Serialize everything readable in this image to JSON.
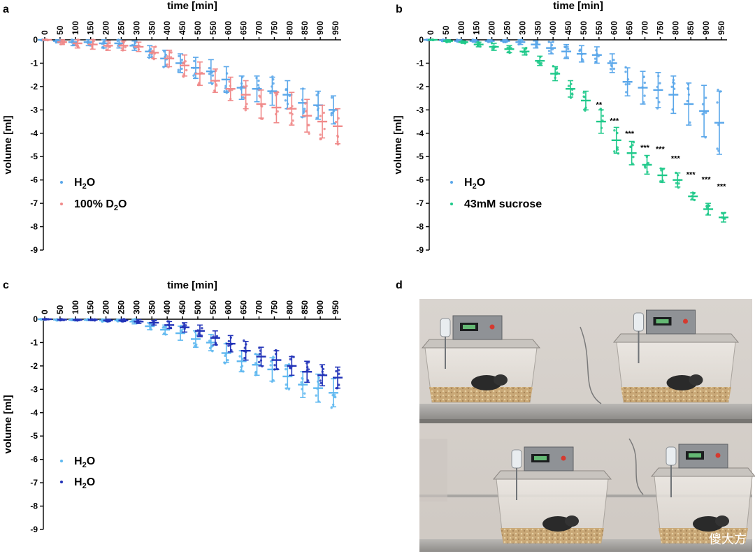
{
  "colors": {
    "h2o": "#5aa7ea",
    "d2o": "#f08a8a",
    "sucrose": "#1fc98a",
    "h2o_dark": "#2233b8",
    "h2o_light": "#5fb8f0"
  },
  "watermark": "傻大方",
  "chart_data": [
    {
      "panel": "a",
      "type": "scatter",
      "xlabel": "time [min]",
      "ylabel": "volume [ml]",
      "x": [
        0,
        50,
        100,
        150,
        200,
        250,
        300,
        350,
        400,
        450,
        500,
        550,
        600,
        650,
        700,
        750,
        800,
        850,
        900,
        950
      ],
      "ylim": [
        -9,
        0
      ],
      "yticks": [
        0,
        -1,
        -2,
        -3,
        -4,
        -5,
        -6,
        -7,
        -8,
        -9
      ],
      "series": [
        {
          "name": "H₂O",
          "name_parts": [
            "H",
            "2",
            "O"
          ],
          "color": "#5aa7ea",
          "mean": [
            0,
            -0.05,
            -0.1,
            -0.1,
            -0.15,
            -0.15,
            -0.25,
            -0.5,
            -0.8,
            -1.0,
            -1.2,
            -1.35,
            -1.7,
            -2.05,
            -2.1,
            -2.2,
            -2.35,
            -2.7,
            -2.8,
            -3.0
          ],
          "sd": [
            0.02,
            0.08,
            0.15,
            0.15,
            0.2,
            0.2,
            0.2,
            0.25,
            0.35,
            0.4,
            0.45,
            0.5,
            0.55,
            0.5,
            0.55,
            0.6,
            0.6,
            0.6,
            0.6,
            0.6
          ]
        },
        {
          "name": "100% D₂O",
          "name_parts": [
            "100% D",
            "2",
            "O"
          ],
          "color": "#f08a8a",
          "mean": [
            0,
            -0.1,
            -0.15,
            -0.2,
            -0.25,
            -0.25,
            -0.3,
            -0.55,
            -0.8,
            -1.1,
            -1.45,
            -1.75,
            -2.1,
            -2.35,
            -2.75,
            -2.9,
            -2.95,
            -3.25,
            -3.5,
            -3.7
          ],
          "sd": [
            0.02,
            0.1,
            0.2,
            0.2,
            0.2,
            0.2,
            0.2,
            0.25,
            0.35,
            0.45,
            0.5,
            0.5,
            0.5,
            0.6,
            0.6,
            0.65,
            0.7,
            0.7,
            0.7,
            0.75
          ]
        }
      ]
    },
    {
      "panel": "b",
      "type": "scatter",
      "xlabel": "time [min]",
      "ylabel": "volume [ml]",
      "x": [
        0,
        50,
        100,
        150,
        200,
        250,
        300,
        350,
        400,
        450,
        500,
        550,
        600,
        650,
        700,
        750,
        800,
        850,
        900,
        950
      ],
      "ylim": [
        -9,
        0
      ],
      "yticks": [
        0,
        -1,
        -2,
        -3,
        -4,
        -5,
        -6,
        -7,
        -8,
        -9
      ],
      "series": [
        {
          "name": "H₂O",
          "name_parts": [
            "H",
            "2",
            "O"
          ],
          "color": "#5aa7ea",
          "mean": [
            0,
            -0.02,
            -0.05,
            -0.05,
            -0.05,
            -0.05,
            -0.1,
            -0.2,
            -0.35,
            -0.5,
            -0.6,
            -0.65,
            -1.0,
            -1.8,
            -2.05,
            -2.15,
            -2.35,
            -2.75,
            -3.05,
            -3.55
          ],
          "sd": [
            0.02,
            0.05,
            0.05,
            0.05,
            0.05,
            0.05,
            0.1,
            0.15,
            0.25,
            0.3,
            0.35,
            0.35,
            0.4,
            0.6,
            0.7,
            0.75,
            0.8,
            0.9,
            1.1,
            1.35
          ]
        },
        {
          "name": "43mM sucrose",
          "name_parts": [
            "43mM sucrose"
          ],
          "color": "#1fc98a",
          "mean": [
            0,
            -0.05,
            -0.1,
            -0.2,
            -0.3,
            -0.4,
            -0.5,
            -0.9,
            -1.45,
            -2.1,
            -2.6,
            -3.5,
            -4.3,
            -4.85,
            -5.35,
            -5.8,
            -6.0,
            -6.7,
            -7.25,
            -7.6
          ],
          "sd": [
            0.02,
            0.05,
            0.05,
            0.1,
            0.15,
            0.15,
            0.15,
            0.2,
            0.3,
            0.35,
            0.4,
            0.5,
            0.55,
            0.5,
            0.4,
            0.3,
            0.3,
            0.15,
            0.25,
            0.2
          ]
        }
      ],
      "annotations": [
        {
          "x": 550,
          "y": -3.0,
          "text": "**"
        },
        {
          "x": 600,
          "y": -3.7,
          "text": "***"
        },
        {
          "x": 650,
          "y": -4.25,
          "text": "***"
        },
        {
          "x": 700,
          "y": -4.85,
          "text": "***"
        },
        {
          "x": 750,
          "y": -4.9,
          "text": "***"
        },
        {
          "x": 800,
          "y": -5.3,
          "text": "***"
        },
        {
          "x": 850,
          "y": -6.0,
          "text": "***"
        },
        {
          "x": 900,
          "y": -6.2,
          "text": "***"
        },
        {
          "x": 950,
          "y": -6.5,
          "text": "***"
        }
      ]
    },
    {
      "panel": "c",
      "type": "scatter",
      "xlabel": "time [min]",
      "ylabel": "volume [ml]",
      "x": [
        0,
        50,
        100,
        150,
        200,
        250,
        300,
        350,
        400,
        450,
        500,
        550,
        600,
        650,
        700,
        750,
        800,
        850,
        900,
        950
      ],
      "ylim": [
        -9,
        0
      ],
      "yticks": [
        0,
        -1,
        -2,
        -3,
        -4,
        -5,
        -6,
        -7,
        -8,
        -9
      ],
      "series": [
        {
          "name": "H₂O",
          "name_parts": [
            "H",
            "2",
            "O"
          ],
          "color": "#5fb8f0",
          "mean": [
            0,
            -0.02,
            -0.03,
            -0.03,
            -0.05,
            -0.05,
            -0.1,
            -0.3,
            -0.45,
            -0.6,
            -0.85,
            -1.0,
            -1.45,
            -1.8,
            -1.95,
            -2.15,
            -2.45,
            -2.8,
            -2.95,
            -3.15
          ],
          "sd": [
            0.02,
            0.03,
            0.03,
            0.03,
            0.05,
            0.05,
            0.1,
            0.15,
            0.2,
            0.3,
            0.35,
            0.35,
            0.4,
            0.45,
            0.45,
            0.5,
            0.5,
            0.55,
            0.6,
            0.6
          ]
        },
        {
          "name": "H₂O",
          "name_parts": [
            "H",
            "2",
            "O"
          ],
          "color": "#2233b8",
          "mean": [
            0,
            -0.02,
            -0.03,
            -0.03,
            -0.05,
            -0.05,
            -0.1,
            -0.15,
            -0.25,
            -0.35,
            -0.5,
            -0.8,
            -1.05,
            -1.35,
            -1.6,
            -1.75,
            -2.0,
            -2.25,
            -2.4,
            -2.5
          ],
          "sd": [
            0.02,
            0.03,
            0.03,
            0.03,
            0.05,
            0.05,
            0.08,
            0.1,
            0.15,
            0.2,
            0.25,
            0.3,
            0.35,
            0.4,
            0.4,
            0.4,
            0.4,
            0.45,
            0.45,
            0.45
          ]
        }
      ]
    }
  ],
  "photo": {
    "panel": "d",
    "type": "photo"
  }
}
